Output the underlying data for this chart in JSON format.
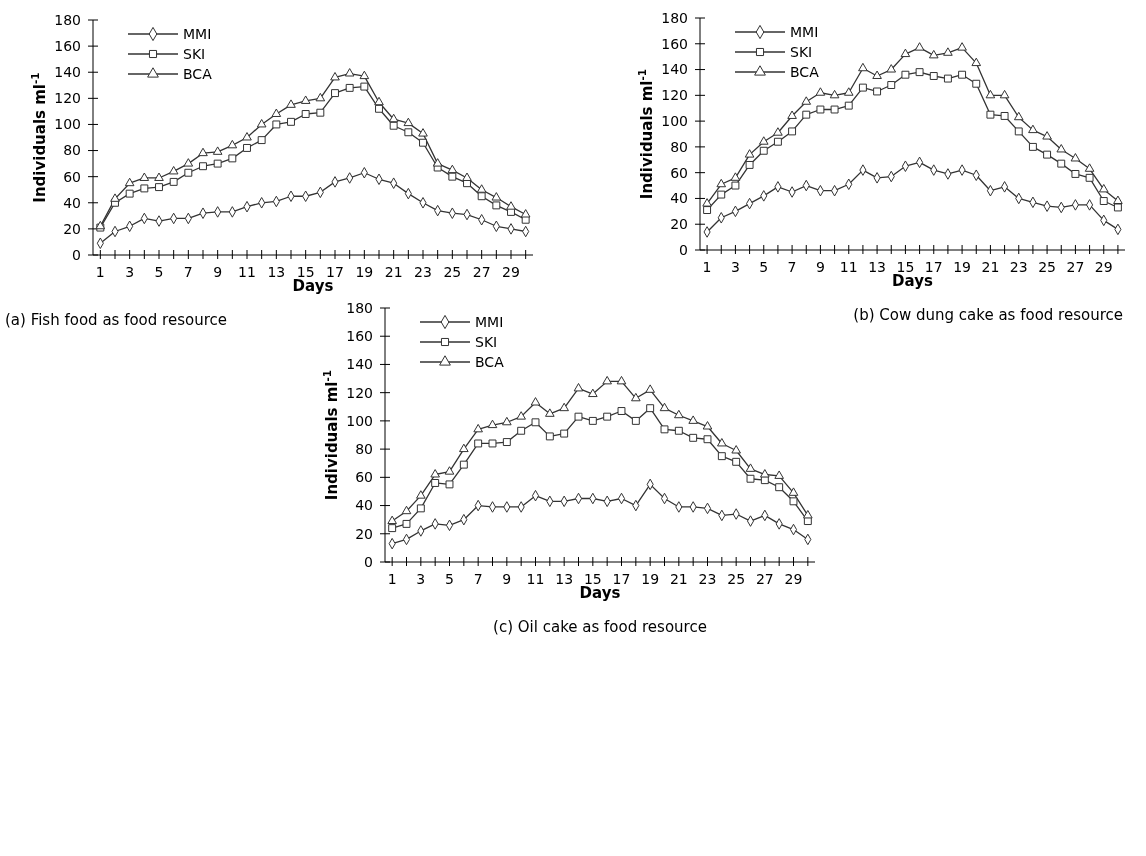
{
  "chart_data": [
    {
      "type": "line",
      "title": "(a) Fish food as food resource",
      "xlabel": "Days",
      "ylabel": "Individuals ml$^{-1}$",
      "legend": "top left",
      "line_style": "solid",
      "x": [
        1,
        2,
        3,
        4,
        5,
        6,
        7,
        8,
        9,
        10,
        11,
        12,
        13,
        14,
        15,
        16,
        17,
        18,
        19,
        20,
        21,
        22,
        23,
        24,
        25,
        26,
        27,
        28,
        29,
        30
      ],
      "xlim": [
        0.5,
        30.5
      ],
      "ylim": [
        0,
        180
      ],
      "yticks": [
        0,
        20,
        40,
        60,
        80,
        100,
        120,
        140,
        160,
        180
      ],
      "xticks": [
        1,
        {
          "value": 2,
          "label": null
        },
        3,
        {
          "value": 4,
          "label": null
        },
        5,
        {
          "value": 6,
          "label": null
        },
        7,
        {
          "value": 8,
          "label": null
        },
        9,
        {
          "value": 10,
          "label": null
        },
        11,
        {
          "value": 12,
          "label": null
        },
        13,
        {
          "value": 14,
          "label": null
        },
        15,
        {
          "value": 16,
          "label": null
        },
        17,
        {
          "value": 18,
          "label": null
        },
        19,
        {
          "value": 20,
          "label": null
        },
        21,
        {
          "value": 22,
          "label": null
        },
        23,
        {
          "value": 24,
          "label": null
        },
        25,
        {
          "value": 26,
          "label": null
        },
        27,
        {
          "value": 28,
          "label": null
        },
        29,
        {
          "value": 30,
          "label": null
        }
      ],
      "series": [
        {
          "name": "MMI",
          "color": "#333333",
          "marker": "diamond",
          "values": [
            9,
            18,
            22,
            28,
            26,
            28,
            28,
            32,
            33,
            33,
            37,
            40,
            41,
            45,
            45,
            48,
            56,
            59,
            63,
            58,
            55,
            47,
            40,
            34,
            32,
            31,
            27,
            22,
            20,
            18
          ]
        },
        {
          "name": "SKI",
          "color": "#333333",
          "marker": "square",
          "values": [
            21,
            40,
            47,
            51,
            52,
            56,
            63,
            68,
            70,
            74,
            82,
            88,
            100,
            102,
            108,
            109,
            124,
            128,
            129,
            112,
            99,
            94,
            86,
            67,
            60,
            55,
            45,
            38,
            33,
            27
          ]
        },
        {
          "name": "BCA",
          "color": "#333333",
          "marker": "triangle",
          "values": [
            22,
            43,
            55,
            59,
            59,
            64,
            70,
            78,
            79,
            84,
            90,
            100,
            108,
            115,
            118,
            120,
            136,
            139,
            137,
            117,
            104,
            101,
            93,
            70,
            65,
            59,
            50,
            44,
            37,
            31
          ]
        }
      ]
    },
    {
      "type": "line",
      "title": "(b) Cow dung cake as food resource",
      "xlabel": "Days",
      "ylabel": "Individuals ml$^{-1}$",
      "legend": "top left",
      "line_style": "solid",
      "x": [
        1,
        2,
        3,
        4,
        5,
        6,
        7,
        8,
        9,
        10,
        11,
        12,
        13,
        14,
        15,
        16,
        17,
        18,
        19,
        20,
        21,
        22,
        23,
        24,
        25,
        26,
        27,
        28,
        29,
        30
      ],
      "xlim": [
        0.5,
        30.5
      ],
      "ylim": [
        0,
        180
      ],
      "yticks": [
        0,
        20,
        40,
        60,
        80,
        100,
        120,
        140,
        160,
        180
      ],
      "xticks": [
        1,
        {
          "value": 2,
          "label": null
        },
        3,
        {
          "value": 4,
          "label": null
        },
        5,
        {
          "value": 6,
          "label": null
        },
        7,
        {
          "value": 8,
          "label": null
        },
        9,
        {
          "value": 10,
          "label": null
        },
        11,
        {
          "value": 12,
          "label": null
        },
        13,
        {
          "value": 14,
          "label": null
        },
        15,
        {
          "value": 16,
          "label": null
        },
        17,
        {
          "value": 18,
          "label": null
        },
        19,
        {
          "value": 20,
          "label": null
        },
        21,
        {
          "value": 22,
          "label": null
        },
        23,
        {
          "value": 24,
          "label": null
        },
        25,
        {
          "value": 26,
          "label": null
        },
        27,
        {
          "value": 28,
          "label": null
        },
        29,
        {
          "value": 30,
          "label": null
        }
      ],
      "series": [
        {
          "name": "MMI",
          "color": "#333333",
          "marker": "diamond",
          "values": [
            14,
            25,
            30,
            36,
            42,
            49,
            45,
            50,
            46,
            46,
            51,
            62,
            56,
            57,
            65,
            68,
            62,
            59,
            62,
            58,
            46,
            49,
            40,
            37,
            34,
            33,
            35,
            35,
            23,
            16
          ]
        },
        {
          "name": "SKI",
          "color": "#333333",
          "marker": "square",
          "values": [
            31,
            43,
            50,
            66,
            77,
            84,
            92,
            105,
            109,
            109,
            112,
            126,
            123,
            128,
            136,
            138,
            135,
            133,
            136,
            129,
            105,
            104,
            92,
            80,
            74,
            67,
            59,
            56,
            38,
            33
          ]
        },
        {
          "name": "BCA",
          "color": "#333333",
          "marker": "triangle",
          "values": [
            36,
            51,
            56,
            74,
            84,
            91,
            104,
            115,
            122,
            120,
            122,
            141,
            135,
            140,
            152,
            157,
            151,
            153,
            157,
            145,
            120,
            120,
            103,
            93,
            88,
            78,
            71,
            63,
            47,
            38
          ]
        }
      ]
    },
    {
      "type": "line",
      "title": "(c) Oil cake as food resource",
      "xlabel": "Days",
      "ylabel": "Individuals ml$^{-1}$",
      "legend": "top left",
      "line_style": "solid",
      "x": [
        1,
        2,
        3,
        4,
        5,
        6,
        7,
        8,
        9,
        10,
        11,
        12,
        13,
        14,
        15,
        16,
        17,
        18,
        19,
        20,
        21,
        22,
        23,
        24,
        25,
        26,
        27,
        28,
        29,
        30
      ],
      "xlim": [
        0.5,
        30.5
      ],
      "ylim": [
        0,
        180
      ],
      "yticks": [
        0,
        20,
        40,
        60,
        80,
        100,
        120,
        140,
        160,
        180
      ],
      "xticks": [
        1,
        {
          "value": 2,
          "label": null
        },
        3,
        {
          "value": 4,
          "label": null
        },
        5,
        {
          "value": 6,
          "label": null
        },
        7,
        {
          "value": 8,
          "label": null
        },
        9,
        {
          "value": 10,
          "label": null
        },
        11,
        {
          "value": 12,
          "label": null
        },
        13,
        {
          "value": 14,
          "label": null
        },
        15,
        {
          "value": 16,
          "label": null
        },
        17,
        {
          "value": 18,
          "label": null
        },
        19,
        {
          "value": 20,
          "label": null
        },
        21,
        {
          "value": 22,
          "label": null
        },
        23,
        {
          "value": 24,
          "label": null
        },
        25,
        {
          "value": 26,
          "label": null
        },
        27,
        {
          "value": 28,
          "label": null
        },
        29,
        {
          "value": 30,
          "label": null
        }
      ],
      "series": [
        {
          "name": "MMI",
          "color": "#333333",
          "marker": "diamond",
          "values": [
            13,
            16,
            22,
            27,
            26,
            30,
            40,
            39,
            39,
            39,
            47,
            43,
            43,
            45,
            45,
            43,
            45,
            40,
            55,
            45,
            39,
            39,
            38,
            33,
            34,
            29,
            33,
            27,
            23,
            16
          ]
        },
        {
          "name": "SKI",
          "color": "#333333",
          "marker": "square",
          "values": [
            24,
            27,
            38,
            56,
            55,
            69,
            84,
            84,
            85,
            93,
            99,
            89,
            91,
            103,
            100,
            103,
            107,
            100,
            109,
            94,
            93,
            88,
            87,
            75,
            71,
            59,
            58,
            53,
            43,
            29
          ]
        },
        {
          "name": "BCA",
          "color": "#333333",
          "marker": "triangle",
          "values": [
            29,
            36,
            47,
            62,
            64,
            80,
            94,
            97,
            99,
            103,
            113,
            105,
            109,
            123,
            119,
            128,
            128,
            116,
            122,
            109,
            104,
            100,
            96,
            84,
            79,
            66,
            62,
            61,
            49,
            33
          ]
        }
      ]
    }
  ]
}
